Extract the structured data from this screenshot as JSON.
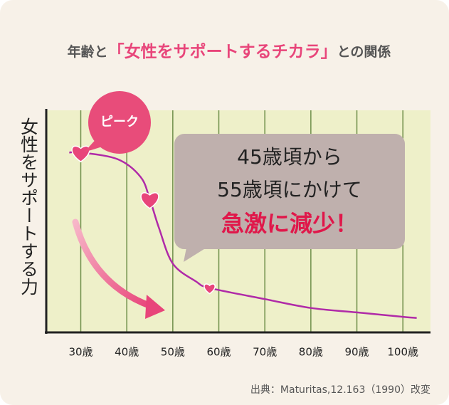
{
  "chart_data": {
    "type": "line",
    "title_parts": [
      "年齢と",
      "「女性をサポートするチカラ」",
      "との関係"
    ],
    "y_label": "女性をサポートする力",
    "x": [
      27.5,
      30,
      38,
      43,
      45,
      47,
      50,
      55,
      58,
      70,
      80,
      90,
      100,
      103
    ],
    "series": [
      {
        "color": "#b02aa8",
        "values": [
          81,
          81,
          78,
          70,
          60,
          47,
          31,
          23,
          20,
          15,
          11,
          9,
          7,
          6.5
        ]
      }
    ],
    "markers": {
      "color": "#e8457a",
      "x": [
        30,
        45,
        58
      ],
      "values": [
        81,
        60,
        20
      ]
    },
    "xlim": [
      22.5,
      106
    ],
    "ylim": [
      0,
      100
    ],
    "xticks": [
      {
        "value": 30,
        "label": "30歳"
      },
      {
        "value": 40,
        "label": "40歳"
      },
      {
        "value": 50,
        "label": "50歳"
      },
      {
        "value": 60,
        "label": "60歳"
      },
      {
        "value": 70,
        "label": "70歳"
      },
      {
        "value": 80,
        "label": "80歳"
      },
      {
        "value": 90,
        "label": "90歳"
      },
      {
        "value": 100,
        "label": "100歳"
      }
    ],
    "grid": true,
    "peak_label": "ピーク",
    "callout_lines": [
      "45歳頃から",
      "55歳頃にかけて",
      "急激に減少！"
    ],
    "source": "出典：Maturitas,12.163（1990）改変"
  }
}
